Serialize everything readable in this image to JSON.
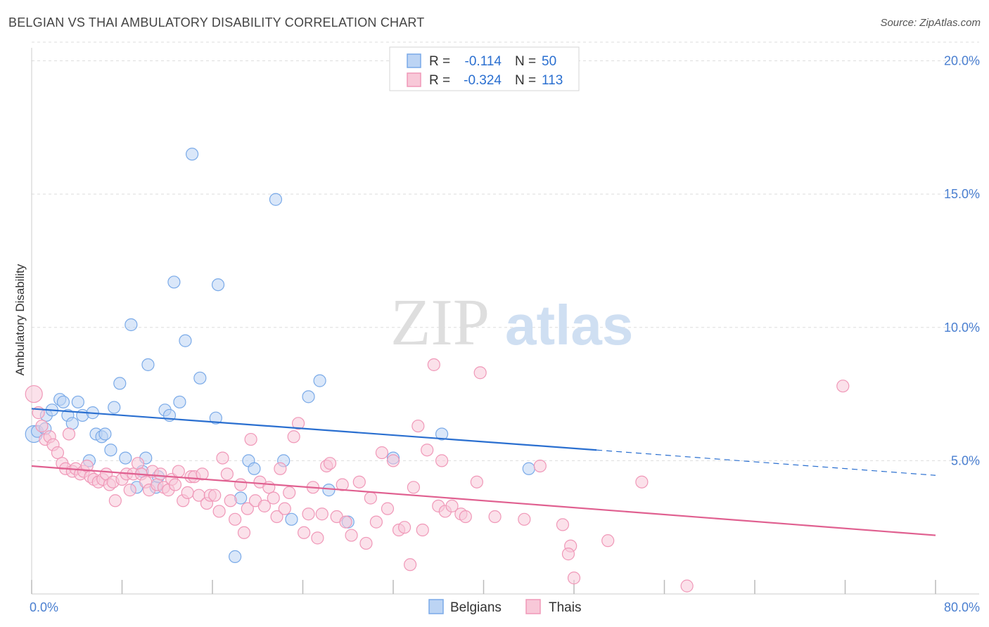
{
  "title": "BELGIAN VS THAI AMBULATORY DISABILITY CORRELATION CHART",
  "source": "Source: ZipAtlas.com",
  "watermark": {
    "zip": "ZIP",
    "atlas": "atlas"
  },
  "chart_data": {
    "type": "scatter",
    "title": "BELGIAN VS THAI AMBULATORY DISABILITY CORRELATION CHART",
    "ylabel": "Ambulatory Disability",
    "xlabel": "",
    "xlim": [
      0,
      80
    ],
    "ylim": [
      0,
      20.7
    ],
    "x_tick_labels": [
      {
        "value": 0,
        "label": "0.0%"
      },
      {
        "value": 80,
        "label": "80.0%"
      }
    ],
    "y_ticks": [
      {
        "value": 5,
        "label": "5.0%"
      },
      {
        "value": 10,
        "label": "10.0%"
      },
      {
        "value": 15,
        "label": "15.0%"
      },
      {
        "value": 20,
        "label": "20.0%"
      }
    ],
    "x_minor_ticks": [
      0,
      8,
      16,
      24,
      32,
      40,
      48,
      56,
      64,
      72,
      80
    ],
    "grid": true,
    "legend_position": "top-center",
    "stats": [
      {
        "r_label": "R =",
        "r_value": "-0.114",
        "n_label": "N =",
        "n_value": "50"
      },
      {
        "r_label": "R =",
        "r_value": "-0.324",
        "n_label": "N =",
        "n_value": "113"
      }
    ],
    "series": [
      {
        "name": "Belgians",
        "color": "#7aaae8",
        "fill": "#bcd4f4",
        "line_color": "#2a6fd0",
        "trend": {
          "x0": 0,
          "y0": 6.95,
          "x1": 50,
          "y1": 5.4,
          "dash_to_x": 80,
          "dash_to_y": 4.45
        },
        "points": [
          [
            0.2,
            6.0
          ],
          [
            0.5,
            6.1
          ],
          [
            1.2,
            6.2
          ],
          [
            1.3,
            6.7
          ],
          [
            1.8,
            6.9
          ],
          [
            2.5,
            7.3
          ],
          [
            2.8,
            7.2
          ],
          [
            3.2,
            6.7
          ],
          [
            3.6,
            6.4
          ],
          [
            4.1,
            7.2
          ],
          [
            4.5,
            6.7
          ],
          [
            5.1,
            5.0
          ],
          [
            5.4,
            6.8
          ],
          [
            5.7,
            6.0
          ],
          [
            6.2,
            5.9
          ],
          [
            6.5,
            6.0
          ],
          [
            7.0,
            5.4
          ],
          [
            7.3,
            7.0
          ],
          [
            7.8,
            7.9
          ],
          [
            8.3,
            5.1
          ],
          [
            8.8,
            10.1
          ],
          [
            9.3,
            4.0
          ],
          [
            9.8,
            4.6
          ],
          [
            10.1,
            5.1
          ],
          [
            10.3,
            8.6
          ],
          [
            11.0,
            4.0
          ],
          [
            11.2,
            4.4
          ],
          [
            11.8,
            6.9
          ],
          [
            12.2,
            6.7
          ],
          [
            12.6,
            11.7
          ],
          [
            13.1,
            7.2
          ],
          [
            13.6,
            9.5
          ],
          [
            14.2,
            16.5
          ],
          [
            14.9,
            8.1
          ],
          [
            16.3,
            6.6
          ],
          [
            16.5,
            11.6
          ],
          [
            18.0,
            1.4
          ],
          [
            18.5,
            3.6
          ],
          [
            19.2,
            5.0
          ],
          [
            19.7,
            4.7
          ],
          [
            21.6,
            14.8
          ],
          [
            22.3,
            5.0
          ],
          [
            23.0,
            2.8
          ],
          [
            24.5,
            7.4
          ],
          [
            25.5,
            8.0
          ],
          [
            26.3,
            3.9
          ],
          [
            28.0,
            2.7
          ],
          [
            32.0,
            5.1
          ],
          [
            36.3,
            6.0
          ],
          [
            44.0,
            4.7
          ]
        ]
      },
      {
        "name": "Thais",
        "color": "#f098b8",
        "fill": "#f8c8d8",
        "line_color": "#e06090",
        "trend": {
          "x0": 0,
          "y0": 4.8,
          "x1": 80,
          "y1": 2.2
        },
        "points": [
          [
            0.2,
            7.5
          ],
          [
            0.6,
            6.8
          ],
          [
            0.9,
            6.3
          ],
          [
            1.2,
            5.8
          ],
          [
            1.6,
            5.9
          ],
          [
            1.9,
            5.6
          ],
          [
            2.3,
            5.3
          ],
          [
            2.7,
            4.9
          ],
          [
            3.0,
            4.7
          ],
          [
            3.3,
            6.0
          ],
          [
            3.6,
            4.6
          ],
          [
            3.9,
            4.7
          ],
          [
            4.3,
            4.5
          ],
          [
            4.6,
            4.6
          ],
          [
            4.9,
            4.8
          ],
          [
            5.2,
            4.4
          ],
          [
            5.5,
            4.3
          ],
          [
            5.9,
            4.2
          ],
          [
            6.3,
            4.3
          ],
          [
            6.6,
            4.5
          ],
          [
            6.9,
            4.1
          ],
          [
            7.2,
            4.2
          ],
          [
            7.4,
            3.5
          ],
          [
            8.0,
            4.3
          ],
          [
            8.4,
            4.5
          ],
          [
            8.7,
            3.9
          ],
          [
            9.0,
            4.5
          ],
          [
            9.4,
            4.9
          ],
          [
            9.7,
            4.5
          ],
          [
            10.1,
            4.2
          ],
          [
            10.4,
            3.9
          ],
          [
            10.7,
            4.6
          ],
          [
            11.1,
            4.1
          ],
          [
            11.4,
            4.5
          ],
          [
            11.7,
            4.0
          ],
          [
            12.1,
            3.9
          ],
          [
            12.4,
            4.3
          ],
          [
            12.7,
            4.1
          ],
          [
            13.0,
            4.6
          ],
          [
            13.4,
            3.5
          ],
          [
            13.8,
            3.8
          ],
          [
            14.1,
            4.4
          ],
          [
            14.4,
            4.4
          ],
          [
            14.8,
            3.7
          ],
          [
            15.1,
            4.5
          ],
          [
            15.5,
            3.4
          ],
          [
            15.8,
            3.7
          ],
          [
            16.2,
            3.7
          ],
          [
            16.6,
            3.1
          ],
          [
            16.9,
            5.1
          ],
          [
            17.3,
            4.5
          ],
          [
            17.6,
            3.5
          ],
          [
            18.0,
            2.8
          ],
          [
            18.5,
            4.1
          ],
          [
            18.8,
            2.3
          ],
          [
            19.1,
            3.2
          ],
          [
            19.4,
            5.8
          ],
          [
            19.8,
            3.5
          ],
          [
            20.2,
            4.2
          ],
          [
            20.6,
            3.3
          ],
          [
            21.0,
            4.0
          ],
          [
            21.4,
            3.6
          ],
          [
            21.7,
            2.9
          ],
          [
            22.0,
            4.7
          ],
          [
            22.4,
            3.2
          ],
          [
            22.8,
            3.8
          ],
          [
            23.2,
            5.9
          ],
          [
            23.6,
            6.4
          ],
          [
            24.1,
            2.3
          ],
          [
            24.5,
            3.0
          ],
          [
            24.9,
            4.0
          ],
          [
            25.3,
            2.1
          ],
          [
            25.7,
            3.0
          ],
          [
            26.1,
            4.8
          ],
          [
            26.4,
            4.9
          ],
          [
            27.0,
            2.9
          ],
          [
            27.5,
            4.1
          ],
          [
            27.8,
            2.7
          ],
          [
            28.3,
            2.2
          ],
          [
            29.0,
            4.2
          ],
          [
            29.6,
            1.9
          ],
          [
            30.0,
            3.6
          ],
          [
            30.5,
            2.7
          ],
          [
            31.0,
            5.3
          ],
          [
            31.5,
            3.2
          ],
          [
            32.0,
            5.0
          ],
          [
            32.5,
            2.4
          ],
          [
            33.0,
            2.5
          ],
          [
            33.5,
            1.1
          ],
          [
            33.8,
            4.0
          ],
          [
            34.2,
            6.3
          ],
          [
            34.6,
            2.4
          ],
          [
            35.0,
            5.4
          ],
          [
            35.6,
            8.6
          ],
          [
            36.0,
            3.3
          ],
          [
            36.3,
            5.0
          ],
          [
            36.6,
            3.1
          ],
          [
            37.2,
            3.3
          ],
          [
            38.0,
            3.0
          ],
          [
            38.4,
            2.9
          ],
          [
            39.4,
            4.2
          ],
          [
            39.7,
            8.3
          ],
          [
            41.0,
            2.9
          ],
          [
            43.6,
            2.8
          ],
          [
            45.0,
            4.8
          ],
          [
            47.0,
            2.6
          ],
          [
            47.7,
            1.8
          ],
          [
            47.5,
            1.5
          ],
          [
            48.0,
            0.6
          ],
          [
            51.0,
            2.0
          ],
          [
            54.0,
            4.2
          ],
          [
            58.0,
            0.3
          ],
          [
            71.8,
            7.8
          ]
        ]
      }
    ]
  }
}
